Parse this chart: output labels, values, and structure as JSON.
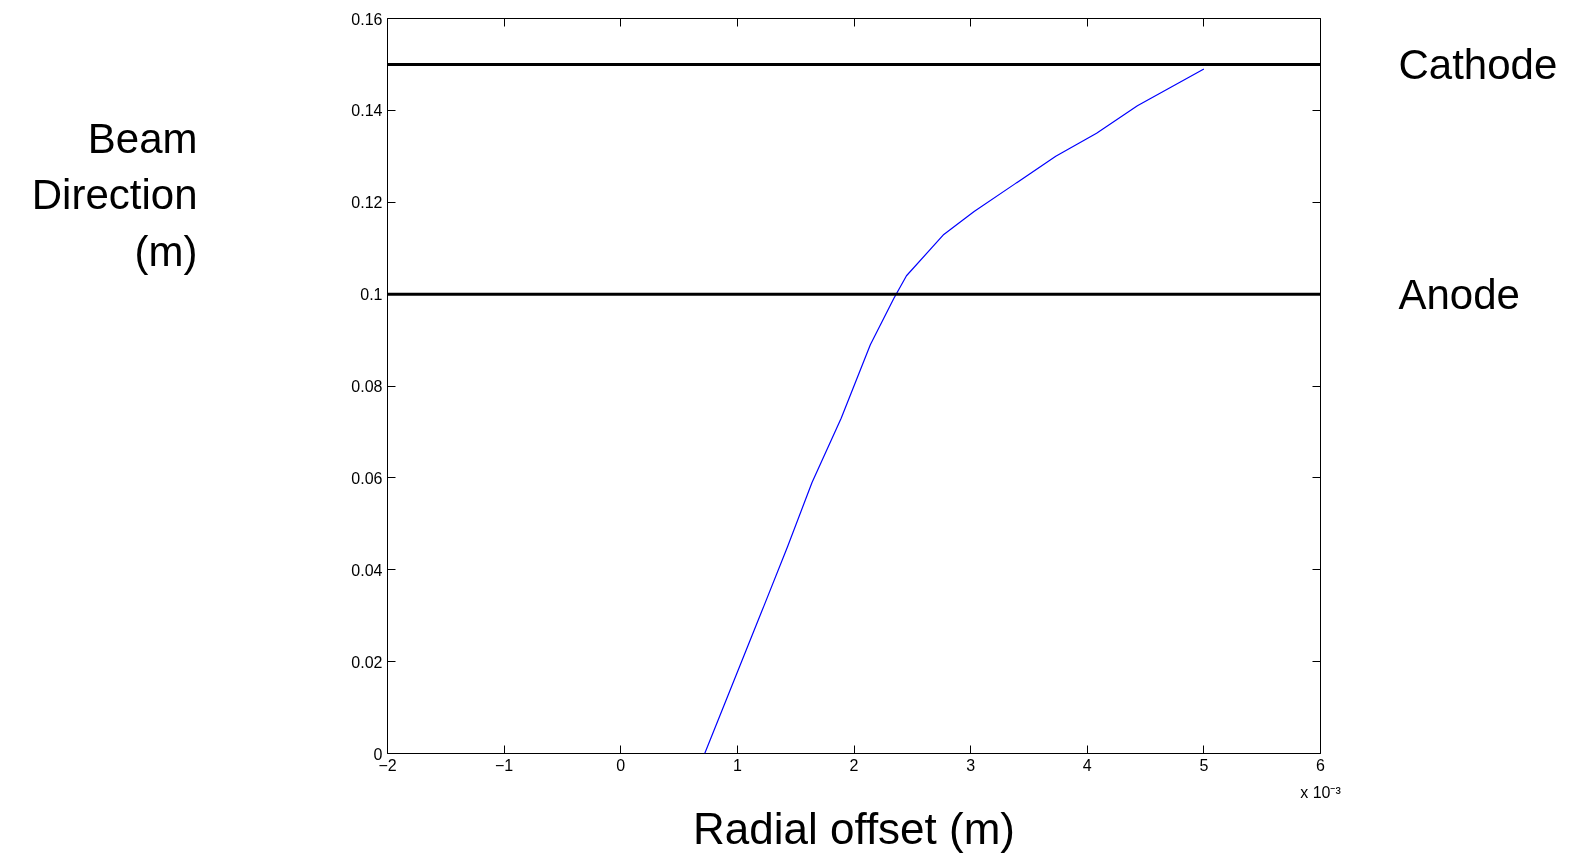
{
  "chart_data": {
    "type": "line",
    "xlabel": "Radial offset (m)",
    "x": [
      0.72,
      1.21,
      1.43,
      1.64,
      1.89,
      2.14,
      2.34,
      2.45,
      2.77,
      3.03,
      3.38,
      3.73,
      4.08,
      4.43,
      5.0
    ],
    "series": [
      {
        "color": "#0000ff",
        "values": [
          0,
          0.031,
          0.045,
          0.059,
          0.073,
          0.089,
          0.099,
          0.104,
          0.113,
          0.118,
          0.124,
          0.13,
          0.135,
          0.141,
          0.149
        ]
      }
    ],
    "xlim": [
      -2,
      6
    ],
    "xticks": [
      -2,
      -1,
      0,
      1,
      2,
      3,
      4,
      5,
      6
    ],
    "ylim": [
      0,
      0.16
    ],
    "yticks": [
      {
        "value": 0,
        "label": "0"
      },
      {
        "value": 0.02,
        "label": "0.02"
      },
      {
        "value": 0.04,
        "label": "0.04"
      },
      {
        "value": 0.06,
        "label": "0.06"
      },
      {
        "value": 0.08,
        "label": "0.08"
      },
      {
        "value": 0.1,
        "label": "0.1"
      },
      {
        "value": 0.12,
        "label": "0.12"
      },
      {
        "value": 0.14,
        "label": "0.14"
      },
      {
        "value": 0.16,
        "label": "0.16"
      }
    ],
    "ref_lines": [
      {
        "axis": "y",
        "value": 0.15,
        "label": "Cathode",
        "color": "#000000"
      },
      {
        "axis": "y",
        "value": 0.1,
        "label": "Anode",
        "color": "#000000"
      }
    ],
    "annotations": [
      "x 10⁻³",
      "Beam Direction (m)"
    ],
    "grid": false
  }
}
